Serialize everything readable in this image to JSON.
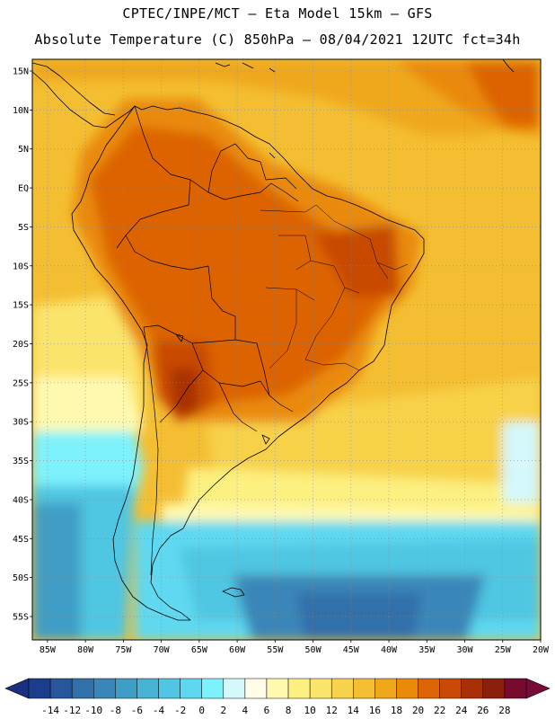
{
  "header": {
    "title_line1": "CPTEC/INPE/MCT –  Eta Model 15km – GFS",
    "title_line2": "Absolute Temperature (C) 850hPa – 08/04/2021 12UTC fct=34h"
  },
  "map": {
    "lat_labels": [
      "15N",
      "10N",
      "5N",
      "EQ",
      "5S",
      "10S",
      "15S",
      "20S",
      "25S",
      "30S",
      "35S",
      "40S",
      "45S",
      "50S",
      "55S"
    ],
    "lon_labels": [
      "85W",
      "80W",
      "75W",
      "70W",
      "65W",
      "60W",
      "55W",
      "50W",
      "45W",
      "40W",
      "35W",
      "30W",
      "25W",
      "20W"
    ],
    "lat_values": [
      15,
      10,
      5,
      0,
      -5,
      -10,
      -15,
      -20,
      -25,
      -30,
      -35,
      -40,
      -45,
      -50,
      -55
    ],
    "lon_values": [
      -85,
      -80,
      -75,
      -70,
      -65,
      -60,
      -55,
      -50,
      -45,
      -40,
      -35,
      -30,
      -25,
      -20
    ]
  },
  "colorbar": {
    "labels": [
      "-14",
      "-12",
      "-10",
      "-8",
      "-6",
      "-4",
      "-2",
      "0",
      "2",
      "4",
      "6",
      "8",
      "10",
      "12",
      "14",
      "16",
      "18",
      "20",
      "22",
      "24",
      "26",
      "28"
    ],
    "colors": [
      "#1c3c8c",
      "#27569c",
      "#3270aa",
      "#3a86b8",
      "#3f9ec6",
      "#47b2d3",
      "#50c6e2",
      "#5ed8f0",
      "#7ef2fc",
      "#d4f8fc",
      "#fffbe6",
      "#fff9b0",
      "#fcf080",
      "#fbe46c",
      "#f7d24a",
      "#f4be32",
      "#efa81a",
      "#ea8a0a",
      "#dc6406",
      "#c84a06",
      "#a83006",
      "#8a200c",
      "#780a30"
    ],
    "min_arrow_color": "#1a2f80",
    "max_arrow_color": "#7a0a3a"
  }
}
